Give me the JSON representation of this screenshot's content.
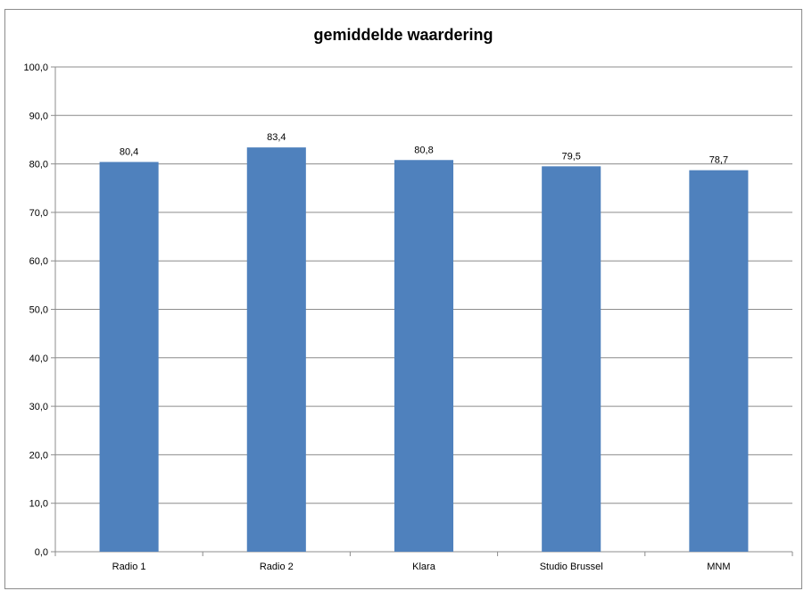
{
  "chart_data": {
    "type": "bar",
    "title": "gemiddelde waardering",
    "xlabel": "",
    "ylabel": "",
    "categories": [
      "Radio 1",
      "Radio 2",
      "Klara",
      "Studio Brussel",
      "MNM"
    ],
    "values": [
      80.4,
      83.4,
      80.8,
      79.5,
      78.7
    ],
    "data_labels": [
      "80,4",
      "83,4",
      "80,8",
      "79,5",
      "78,7"
    ],
    "ylim": [
      0,
      100
    ],
    "y_ticks": [
      0,
      10,
      20,
      30,
      40,
      50,
      60,
      70,
      80,
      90,
      100
    ],
    "y_tick_labels": [
      "0,0",
      "10,0",
      "20,0",
      "30,0",
      "40,0",
      "50,0",
      "60,0",
      "70,0",
      "80,0",
      "90,0",
      "100,0"
    ],
    "grid": true,
    "legend": "none",
    "bar_color": "#4f81bd",
    "grid_color": "#8c8c8c"
  }
}
